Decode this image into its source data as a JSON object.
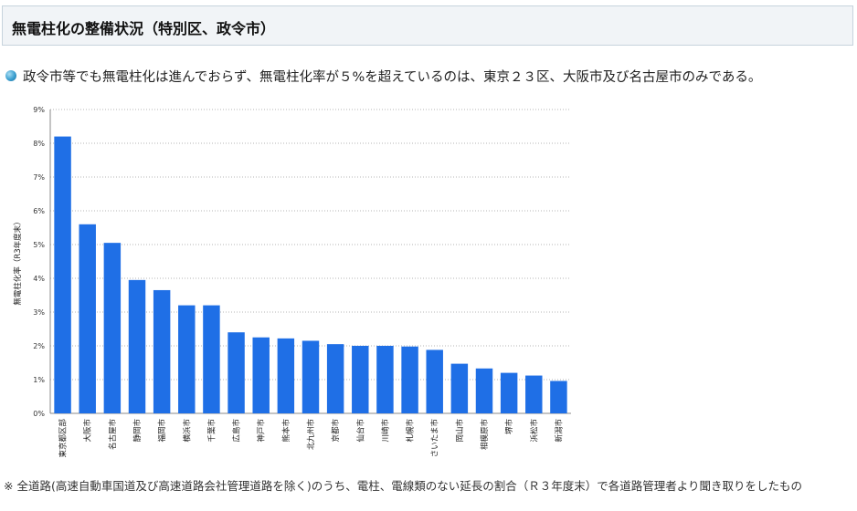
{
  "header": {
    "title": "無電柱化の整備状況（特別区、政令市）"
  },
  "lead": {
    "text": "政令市等でも無電柱化は進んでおらず、無電柱化率が５%を超えているのは、東京２３区、大阪市及び名古屋市のみである。"
  },
  "note": {
    "text": "※ 全道路(高速自動車国道及び高速道路会社管理道路を除く)のうち、電柱、電線類のない延長の割合（Ｒ３年度末）で各道路管理者より聞き取りをしたもの"
  },
  "chart_data": {
    "type": "bar",
    "title": "",
    "xlabel": "",
    "ylabel": "無電柱化率（R3年度末）",
    "ylim": [
      0,
      9
    ],
    "yticks": [
      "0%",
      "1%",
      "2%",
      "3%",
      "4%",
      "5%",
      "6%",
      "7%",
      "8%",
      "9%"
    ],
    "grid": true,
    "bar_color": "#1f6fe6",
    "categories": [
      "東京都区部",
      "大阪市",
      "名古屋市",
      "静岡市",
      "福岡市",
      "横浜市",
      "千葉市",
      "広島市",
      "神戸市",
      "熊本市",
      "北九州市",
      "京都市",
      "仙台市",
      "川崎市",
      "札幌市",
      "さいたま市",
      "岡山市",
      "相模原市",
      "堺市",
      "浜松市",
      "新潟市"
    ],
    "values": [
      8.2,
      5.6,
      5.05,
      3.95,
      3.65,
      3.2,
      3.2,
      2.4,
      2.25,
      2.22,
      2.15,
      2.05,
      2.0,
      2.0,
      1.98,
      1.88,
      1.47,
      1.33,
      1.2,
      1.12,
      0.96
    ]
  }
}
